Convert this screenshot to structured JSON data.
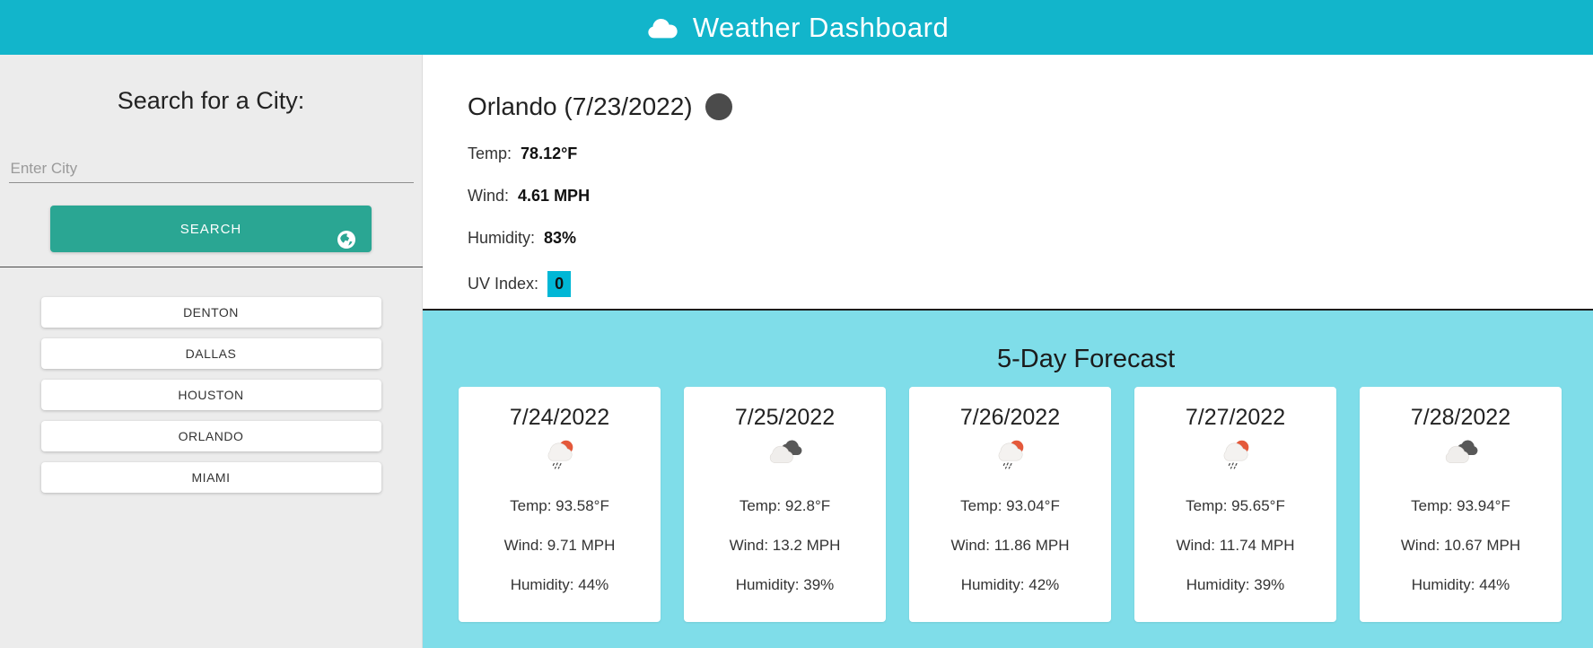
{
  "colors": {
    "header_bg": "#12b5cb",
    "forecast_bg": "#7fdde9",
    "button_bg": "#2aa693",
    "uv_badge_bg": "#00b7d6",
    "sidebar_bg": "#ececec"
  },
  "header": {
    "title": "Weather Dashboard",
    "icon": "cloud-icon"
  },
  "sidebar": {
    "heading": "Search for a City:",
    "search_input": {
      "placeholder": "Enter City",
      "value": ""
    },
    "search_button": {
      "label": "SEARCH",
      "icon": "globe-icon"
    },
    "cities": [
      "DENTON",
      "DALLAS",
      "HOUSTON",
      "ORLANDO",
      "MIAMI"
    ]
  },
  "current": {
    "title": "Orlando (7/23/2022)",
    "icon": "new-moon-icon",
    "details": [
      {
        "label": "Temp:",
        "value": "78.12°F"
      },
      {
        "label": "Wind:",
        "value": "4.61 MPH"
      },
      {
        "label": "Humidity:",
        "value": "83%"
      },
      {
        "label": "UV Index:",
        "value": "0"
      }
    ]
  },
  "forecast": {
    "heading": "5-Day Forecast",
    "days": [
      {
        "date": "7/24/2022",
        "icon": "sun-rain-cloud-icon",
        "rows": [
          {
            "label": "Temp:",
            "value": "93.58°F"
          },
          {
            "label": "Wind:",
            "value": "9.71 MPH"
          },
          {
            "label": "Humidity:",
            "value": "44%"
          }
        ]
      },
      {
        "date": "7/25/2022",
        "icon": "clouds-icon",
        "rows": [
          {
            "label": "Temp:",
            "value": "92.8°F"
          },
          {
            "label": "Wind:",
            "value": "13.2 MPH"
          },
          {
            "label": "Humidity:",
            "value": "39%"
          }
        ]
      },
      {
        "date": "7/26/2022",
        "icon": "sun-rain-cloud-icon",
        "rows": [
          {
            "label": "Temp:",
            "value": "93.04°F"
          },
          {
            "label": "Wind:",
            "value": "11.86 MPH"
          },
          {
            "label": "Humidity:",
            "value": "42%"
          }
        ]
      },
      {
        "date": "7/27/2022",
        "icon": "sun-rain-cloud-icon",
        "rows": [
          {
            "label": "Temp:",
            "value": "95.65°F"
          },
          {
            "label": "Wind:",
            "value": "11.74 MPH"
          },
          {
            "label": "Humidity:",
            "value": "39%"
          }
        ]
      },
      {
        "date": "7/28/2022",
        "icon": "clouds-icon",
        "rows": [
          {
            "label": "Temp:",
            "value": "93.94°F"
          },
          {
            "label": "Wind:",
            "value": "10.67 MPH"
          },
          {
            "label": "Humidity:",
            "value": "44%"
          }
        ]
      }
    ]
  }
}
